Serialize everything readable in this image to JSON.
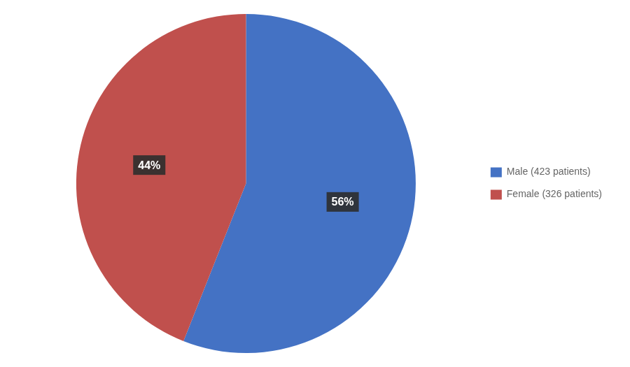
{
  "chart_data": {
    "type": "pie",
    "categories": [
      "Male (423 patients)",
      "Female (326 patients)"
    ],
    "values": [
      56,
      44
    ],
    "value_labels": [
      "56%",
      "44%"
    ],
    "colors": [
      "#4472C4",
      "#C0504D"
    ],
    "data_labels": true,
    "legend": "right"
  }
}
